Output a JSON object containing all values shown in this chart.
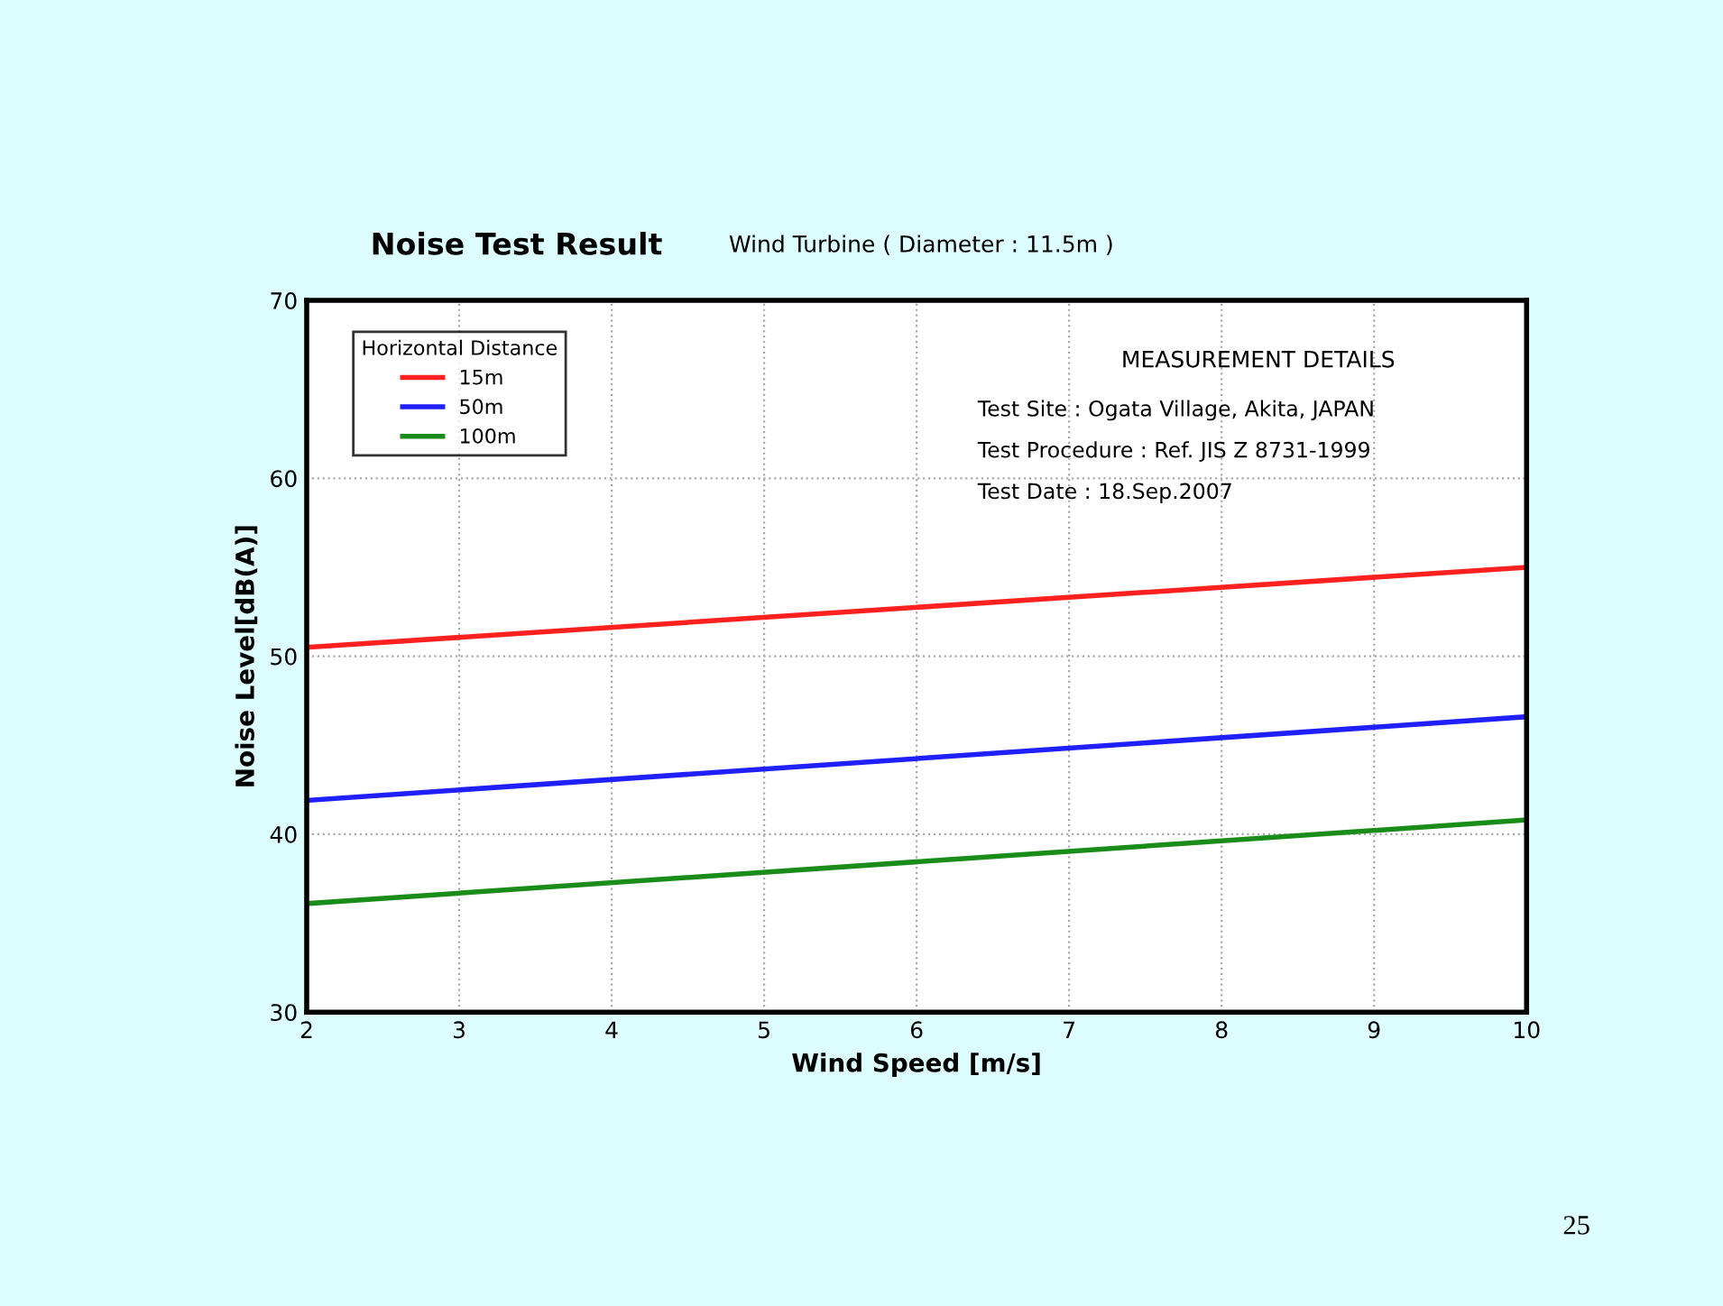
{
  "chart_data": {
    "type": "line",
    "title": "Noise Test Result",
    "subtitle": "Wind Turbine ( Diameter : 11.5m )",
    "xlabel": "Wind Speed [m/s]",
    "ylabel": "Noise Level[dB(A)]",
    "legend_title": "Horizontal Distance",
    "x": [
      2,
      10
    ],
    "series": [
      {
        "name": "15m",
        "color": "#ff2020",
        "values": [
          50.5,
          55.0
        ]
      },
      {
        "name": "50m",
        "color": "#2020ff",
        "values": [
          41.9,
          46.6
        ]
      },
      {
        "name": "100m",
        "color": "#1a8c1a",
        "values": [
          36.1,
          40.8
        ]
      }
    ],
    "xlim": [
      2,
      10
    ],
    "xticks": [
      2,
      3,
      4,
      5,
      6,
      7,
      8,
      9,
      10
    ],
    "ylim": [
      30,
      70
    ],
    "yticks": [
      30,
      40,
      50,
      60,
      70
    ],
    "grid": true,
    "legend": "top left",
    "marker": "none",
    "line_style": "solid",
    "annotations": [
      "MEASUREMENT DETAILS",
      "Test Site : Ogata Village, Akita, JAPAN",
      "Test Procedure : Ref. JIS Z 8731-1999",
      "Test Date : 18.Sep.2007",
      "25"
    ]
  }
}
